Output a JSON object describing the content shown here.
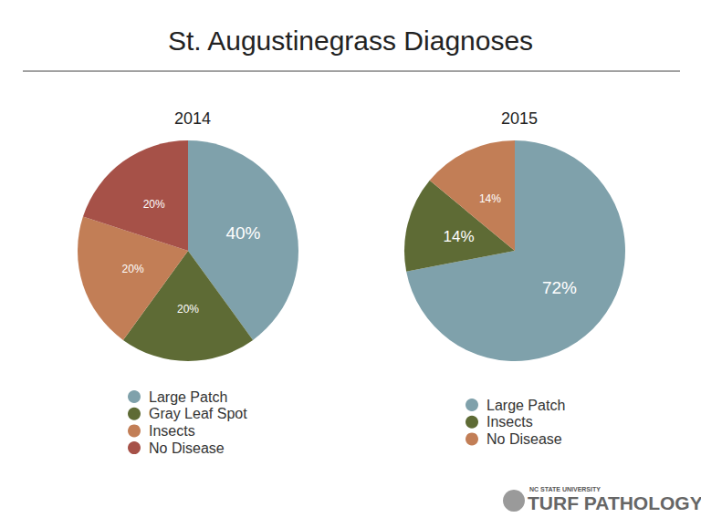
{
  "title": "St. Augustinegrass Diagnoses",
  "logo": {
    "line1": "NC STATE UNIVERSITY",
    "line2": "TURF PATHOLOGY"
  },
  "chart_data": [
    {
      "type": "pie",
      "title": "2014",
      "categories": [
        "Large Patch",
        "Gray Leaf Spot",
        "Insects",
        "No Disease"
      ],
      "values": [
        40,
        20,
        20,
        20
      ],
      "value_labels": [
        "40%",
        "20%",
        "20%",
        "20%"
      ],
      "colors": [
        "#7fa1ab",
        "#5e6b35",
        "#c27e56",
        "#a65148"
      ],
      "data_labels": true,
      "legend": "bottom"
    },
    {
      "type": "pie",
      "title": "2015",
      "categories": [
        "Large Patch",
        "Insects",
        "No Disease"
      ],
      "values": [
        72,
        14,
        14
      ],
      "value_labels": [
        "72%",
        "14%",
        "14%"
      ],
      "colors": [
        "#7fa1ab",
        "#5e6b35",
        "#c27e56"
      ],
      "data_labels": true,
      "legend": "bottom"
    }
  ]
}
